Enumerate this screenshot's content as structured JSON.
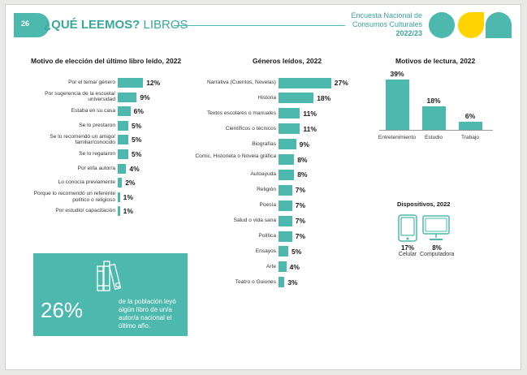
{
  "header": {
    "page_number": "26",
    "title_bold": "¿QUÉ LEEMOS?",
    "title_rest": "LIBROS",
    "survey_line1": "Encuesta Nacional de",
    "survey_line2": "Consumos Culturales",
    "survey_year": "2022/23"
  },
  "colors": {
    "accent": "#4db8ad",
    "accent_dark": "#3aa79d",
    "yellow": "#ffd200"
  },
  "chart_data": [
    {
      "type": "bar",
      "orientation": "horizontal",
      "title": "Motivo de elección del último libro leído, 2022",
      "categories": [
        "Por el tema/ género",
        "Por sugerencia de la escuela/ universidad",
        "Estaba en su casa",
        "Se lo prestaron",
        "Se lo recomendó un amigo/ familiar/conocido",
        "Se lo regalaron",
        "Por el/la autor/a",
        "Lo conocía previamente",
        "Porque lo recomendó un referente político o religioso",
        "Por estudio/ capacitación"
      ],
      "values": [
        12,
        9,
        6,
        5,
        5,
        5,
        4,
        2,
        1,
        1
      ],
      "value_labels": [
        "12%",
        "9%",
        "6%",
        "5%",
        "5%",
        "5%",
        "4%",
        "2%",
        "1%",
        "1%"
      ]
    },
    {
      "type": "bar",
      "orientation": "horizontal",
      "title": "Géneros leídos, 2022",
      "categories": [
        "Narrativa (Cuentos, Novelas)",
        "Historia",
        "Textos escolares o manuales",
        "Científicos o técnicos",
        "Biografías",
        "Comic, Historieta o Novela gráfica",
        "Autoayuda",
        "Religión",
        "Poesía",
        "Salud o vida sana",
        "Política",
        "Ensayos",
        "Arte",
        "Teatro o Guiones"
      ],
      "values": [
        27,
        18,
        11,
        11,
        9,
        8,
        8,
        7,
        7,
        7,
        7,
        5,
        4,
        3
      ],
      "value_labels": [
        "27%",
        "18%",
        "11%",
        "11%",
        "9%",
        "8%",
        "8%",
        "7%",
        "7%",
        "7%",
        "7%",
        "5%",
        "4%",
        "3%"
      ]
    },
    {
      "type": "bar",
      "orientation": "vertical",
      "title": "Motivos de lectura, 2022",
      "categories": [
        "Entretenimiento",
        "Estudio",
        "Trabajo"
      ],
      "values": [
        39,
        18,
        6
      ],
      "value_labels": [
        "39%",
        "18%",
        "6%"
      ]
    }
  ],
  "devices": {
    "title": "Dispositivos, 2022",
    "items": [
      {
        "icon": "phone-icon",
        "value": "17%",
        "label": "Celular"
      },
      {
        "icon": "monitor-icon",
        "value": "8%",
        "label": "Computadora"
      }
    ]
  },
  "highlight": {
    "value": "26%",
    "text": "de la población leyó algún libro de un/a autor/a nacional el último año.",
    "icon": "books-icon"
  }
}
